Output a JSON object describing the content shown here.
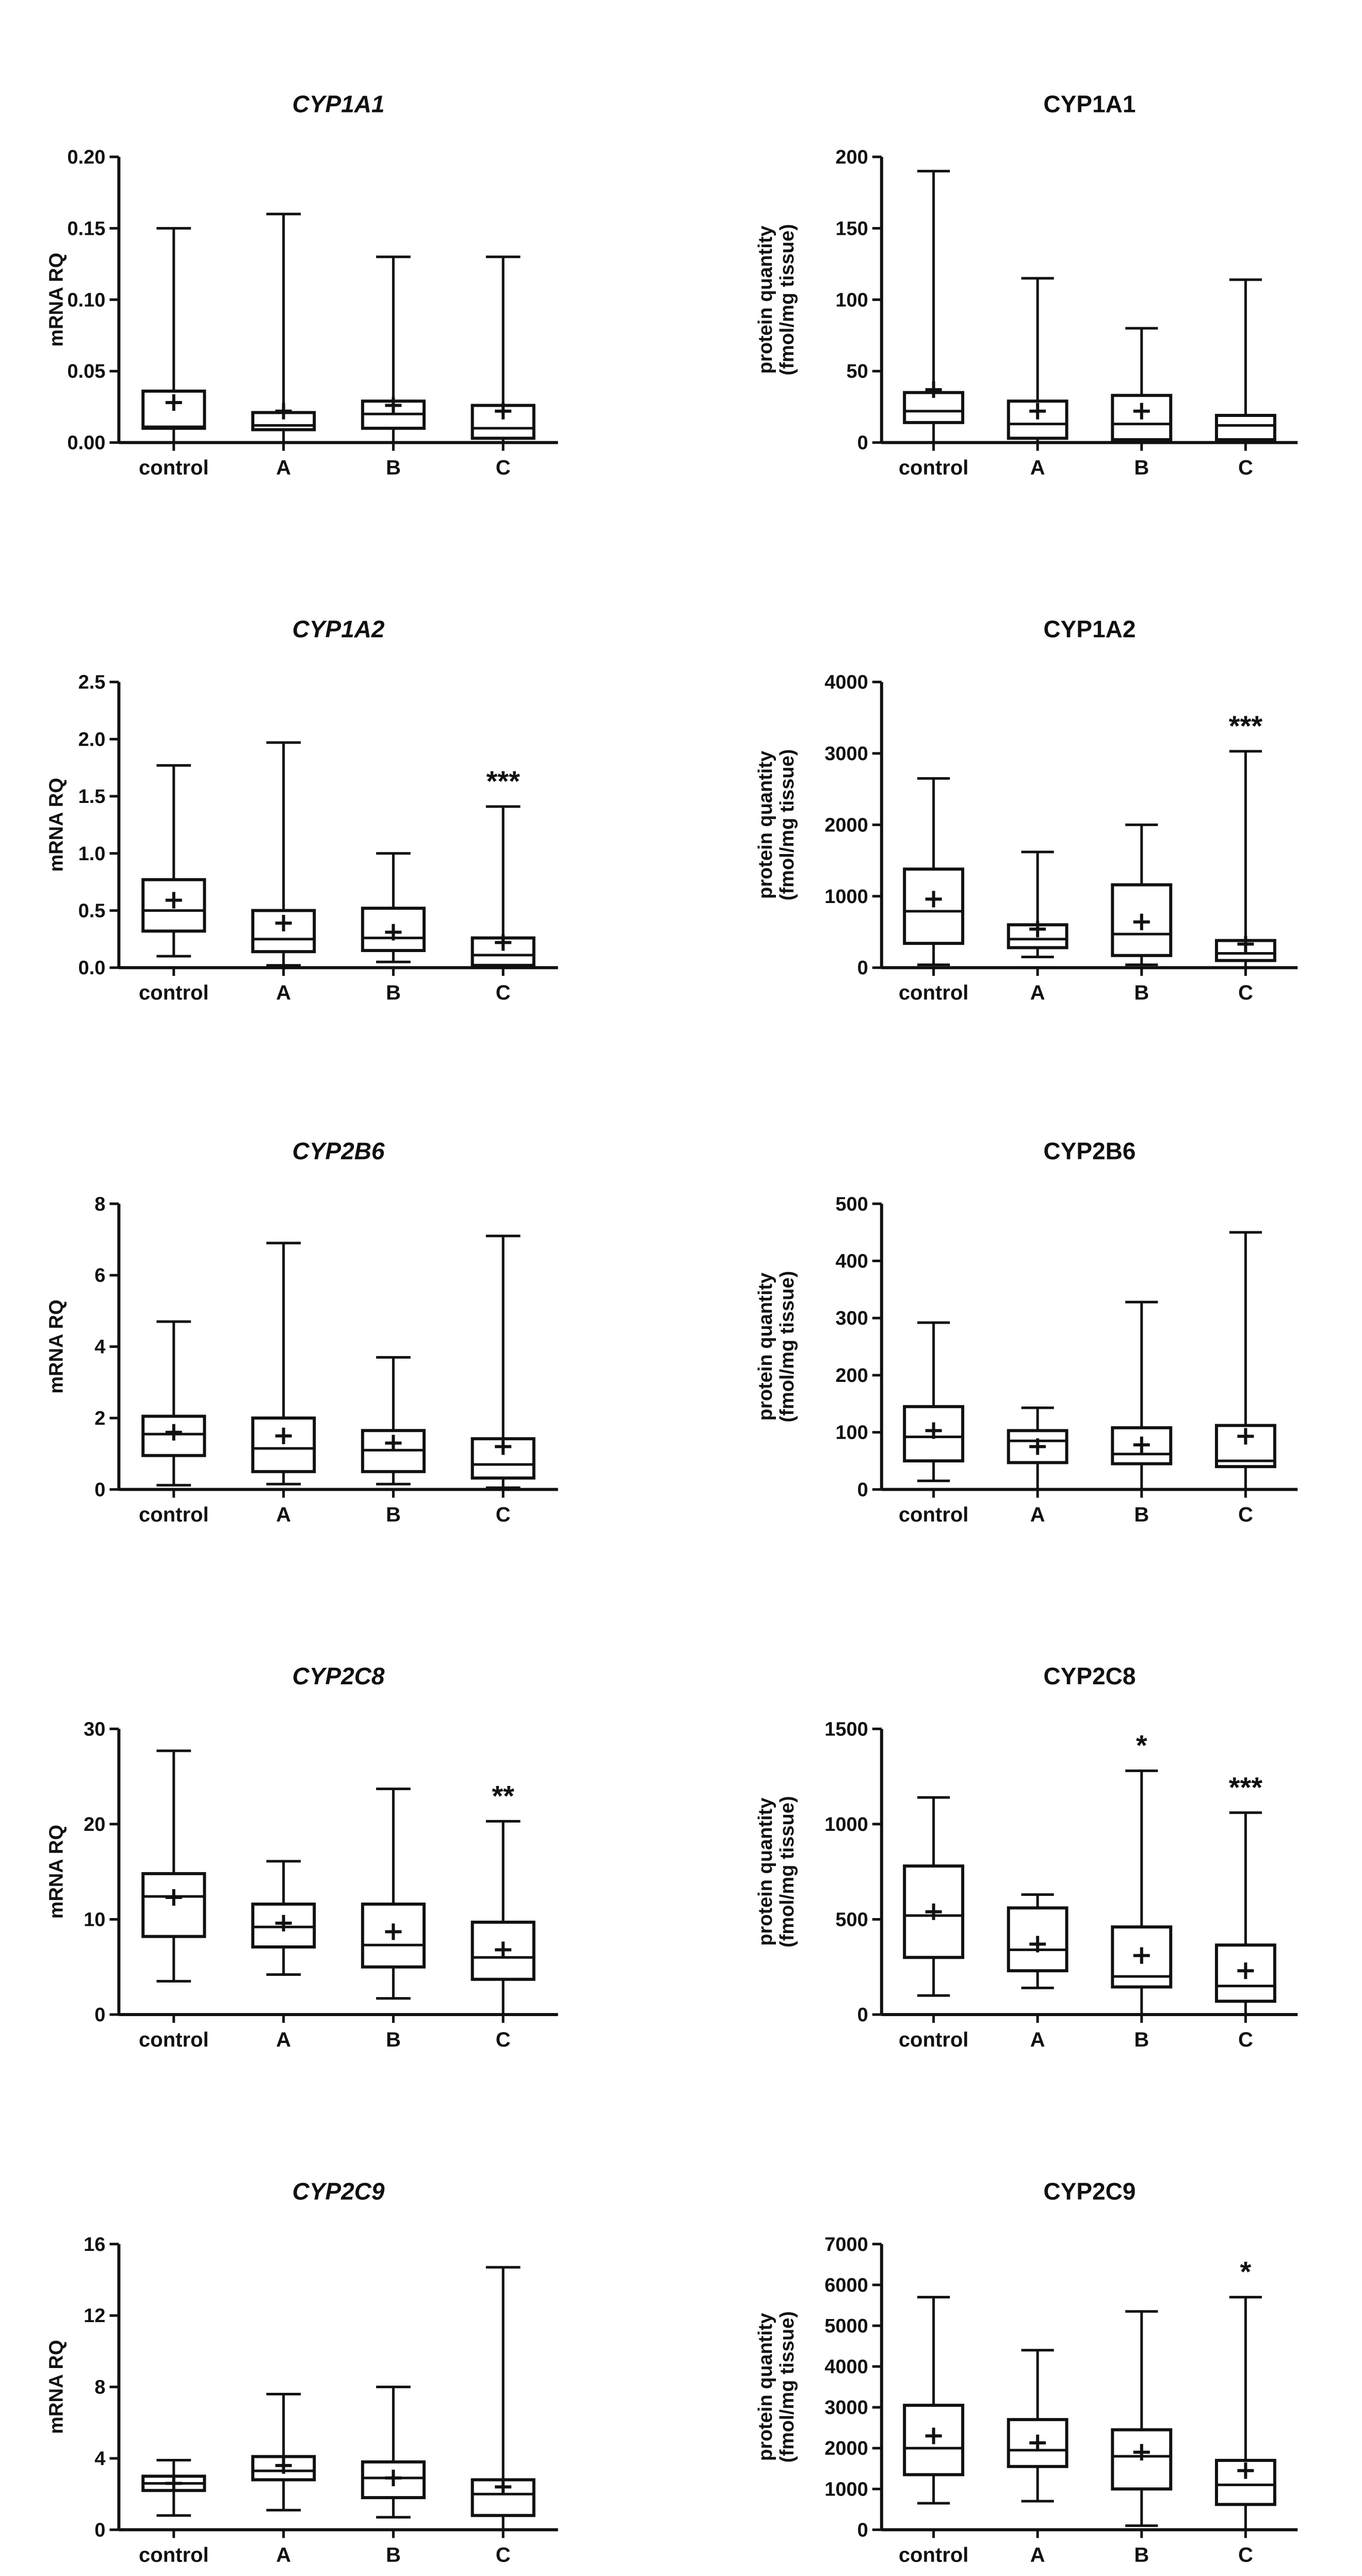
{
  "chart_data": [
    {
      "type": "boxplot",
      "title": "CYP1A1",
      "title_italic": true,
      "ylabel": [
        "mRNA RQ"
      ],
      "yticks": [
        0,
        0.05,
        0.1,
        0.15,
        0.2
      ],
      "ytick_labels": [
        "0.00",
        "0.05",
        "0.10",
        "0.15",
        "0.20"
      ],
      "ylim": [
        0,
        0.2
      ],
      "categories": [
        "control",
        "A",
        "B",
        "C"
      ],
      "boxes": [
        {
          "min": 0,
          "q1": 0.01,
          "median": 0.011,
          "q3": 0.036,
          "max": 0.15,
          "mean": 0.028
        },
        {
          "min": 0,
          "q1": 0.009,
          "median": 0.012,
          "q3": 0.021,
          "max": 0.16,
          "mean": 0.022
        },
        {
          "min": 0,
          "q1": 0.01,
          "median": 0.02,
          "q3": 0.029,
          "max": 0.13,
          "mean": 0.026
        },
        {
          "min": 0,
          "q1": 0.003,
          "median": 0.01,
          "q3": 0.026,
          "max": 0.13,
          "mean": 0.022
        }
      ],
      "significance": [
        "",
        "",
        "",
        ""
      ]
    },
    {
      "type": "boxplot",
      "title": "CYP1A1",
      "title_italic": false,
      "ylabel": [
        "protein quantity",
        "(fmol/mg tissue)"
      ],
      "yticks": [
        0,
        50,
        100,
        150,
        200
      ],
      "ytick_labels": [
        "0",
        "50",
        "100",
        "150",
        "200"
      ],
      "ylim": [
        0,
        200
      ],
      "categories": [
        "control",
        "A",
        "B",
        "C"
      ],
      "boxes": [
        {
          "min": 0,
          "q1": 14,
          "median": 22,
          "q3": 35,
          "max": 190,
          "mean": 37
        },
        {
          "min": 0,
          "q1": 3,
          "median": 13,
          "q3": 29,
          "max": 115,
          "mean": 22
        },
        {
          "min": 0,
          "q1": 2,
          "median": 13,
          "q3": 33,
          "max": 80,
          "mean": 22
        },
        {
          "min": 0,
          "q1": 2,
          "median": 12,
          "q3": 19,
          "max": 114,
          "mean": null
        }
      ],
      "significance": [
        "",
        "",
        "",
        ""
      ]
    },
    {
      "type": "boxplot",
      "title": "CYP1A2",
      "title_italic": true,
      "ylabel": [
        "mRNA RQ"
      ],
      "yticks": [
        0,
        0.5,
        1,
        1.5,
        2,
        2.5
      ],
      "ytick_labels": [
        "0.0",
        "0.5",
        "1.0",
        "1.5",
        "2.0",
        "2.5"
      ],
      "ylim": [
        0,
        2.5
      ],
      "categories": [
        "control",
        "A",
        "B",
        "C"
      ],
      "boxes": [
        {
          "min": 0.1,
          "q1": 0.32,
          "median": 0.5,
          "q3": 0.77,
          "max": 1.77,
          "mean": 0.59
        },
        {
          "min": 0.02,
          "q1": 0.14,
          "median": 0.25,
          "q3": 0.5,
          "max": 1.97,
          "mean": 0.39
        },
        {
          "min": 0.05,
          "q1": 0.15,
          "median": 0.26,
          "q3": 0.52,
          "max": 1.0,
          "mean": 0.31
        },
        {
          "min": 0,
          "q1": 0.02,
          "median": 0.11,
          "q3": 0.26,
          "max": 1.41,
          "mean": 0.22
        }
      ],
      "significance": [
        "",
        "",
        "",
        "***"
      ]
    },
    {
      "type": "boxplot",
      "title": "CYP1A2",
      "title_italic": false,
      "ylabel": [
        "protein quantity",
        "(fmol/mg tissue)"
      ],
      "yticks": [
        0,
        1000,
        2000,
        3000,
        4000
      ],
      "ytick_labels": [
        "0",
        "1000",
        "2000",
        "3000",
        "4000"
      ],
      "ylim": [
        0,
        4000
      ],
      "categories": [
        "control",
        "A",
        "B",
        "C"
      ],
      "boxes": [
        {
          "min": 40,
          "q1": 340,
          "median": 790,
          "q3": 1380,
          "max": 2650,
          "mean": 960
        },
        {
          "min": 150,
          "q1": 280,
          "median": 400,
          "q3": 600,
          "max": 1620,
          "mean": 540
        },
        {
          "min": 40,
          "q1": 170,
          "median": 470,
          "q3": 1160,
          "max": 2000,
          "mean": 640
        },
        {
          "min": 0,
          "q1": 100,
          "median": 200,
          "q3": 380,
          "max": 3030,
          "mean": 330
        }
      ],
      "significance": [
        "",
        "",
        "",
        "***"
      ]
    },
    {
      "type": "boxplot",
      "title": "CYP2B6",
      "title_italic": true,
      "ylabel": [
        "mRNA RQ"
      ],
      "yticks": [
        0,
        2,
        4,
        6,
        8
      ],
      "ytick_labels": [
        "0",
        "2",
        "4",
        "6",
        "8"
      ],
      "ylim": [
        0,
        8
      ],
      "categories": [
        "control",
        "A",
        "B",
        "C"
      ],
      "boxes": [
        {
          "min": 0.12,
          "q1": 0.95,
          "median": 1.55,
          "q3": 2.05,
          "max": 4.7,
          "mean": 1.6
        },
        {
          "min": 0.15,
          "q1": 0.5,
          "median": 1.15,
          "q3": 2.0,
          "max": 6.9,
          "mean": 1.5
        },
        {
          "min": 0.15,
          "q1": 0.5,
          "median": 1.1,
          "q3": 1.65,
          "max": 3.7,
          "mean": 1.3
        },
        {
          "min": 0.05,
          "q1": 0.32,
          "median": 0.7,
          "q3": 1.42,
          "max": 7.1,
          "mean": 1.2
        }
      ],
      "significance": [
        "",
        "",
        "",
        ""
      ]
    },
    {
      "type": "boxplot",
      "title": "CYP2B6",
      "title_italic": false,
      "ylabel": [
        "protein quantity",
        "(fmol/mg tissue)"
      ],
      "yticks": [
        0,
        100,
        200,
        300,
        400,
        500
      ],
      "ytick_labels": [
        "0",
        "100",
        "200",
        "300",
        "400",
        "500"
      ],
      "ylim": [
        0,
        500
      ],
      "categories": [
        "control",
        "A",
        "B",
        "C"
      ],
      "boxes": [
        {
          "min": 15,
          "q1": 50,
          "median": 92,
          "q3": 145,
          "max": 292,
          "mean": 103
        },
        {
          "min": 0,
          "q1": 47,
          "median": 85,
          "q3": 103,
          "max": 143,
          "mean": 75
        },
        {
          "min": 0,
          "q1": 45,
          "median": 62,
          "q3": 108,
          "max": 328,
          "mean": 78
        },
        {
          "min": 0,
          "q1": 40,
          "median": 50,
          "q3": 112,
          "max": 450,
          "mean": 93
        }
      ],
      "significance": [
        "",
        "",
        "",
        ""
      ]
    },
    {
      "type": "boxplot",
      "title": "CYP2C8",
      "title_italic": true,
      "ylabel": [
        "mRNA RQ"
      ],
      "yticks": [
        0,
        10,
        20,
        30
      ],
      "ytick_labels": [
        "0",
        "10",
        "20",
        "30"
      ],
      "ylim": [
        0,
        30
      ],
      "categories": [
        "control",
        "A",
        "B",
        "C"
      ],
      "boxes": [
        {
          "min": 3.5,
          "q1": 8.2,
          "median": 12.4,
          "q3": 14.8,
          "max": 27.7,
          "mean": 12.3
        },
        {
          "min": 4.2,
          "q1": 7.1,
          "median": 9.2,
          "q3": 11.6,
          "max": 16.1,
          "mean": 9.6
        },
        {
          "min": 1.7,
          "q1": 5.0,
          "median": 7.3,
          "q3": 11.6,
          "max": 23.7,
          "mean": 8.7
        },
        {
          "min": 0,
          "q1": 3.7,
          "median": 6.0,
          "q3": 9.7,
          "max": 20.3,
          "mean": 6.8
        }
      ],
      "significance": [
        "",
        "",
        "",
        "**"
      ]
    },
    {
      "type": "boxplot",
      "title": "CYP2C8",
      "title_italic": false,
      "ylabel": [
        "protein quantity",
        "(fmol/mg tissue)"
      ],
      "yticks": [
        0,
        500,
        1000,
        1500
      ],
      "ytick_labels": [
        "0",
        "500",
        "1000",
        "1500"
      ],
      "ylim": [
        0,
        1500
      ],
      "categories": [
        "control",
        "A",
        "B",
        "C"
      ],
      "boxes": [
        {
          "min": 100,
          "q1": 300,
          "median": 520,
          "q3": 780,
          "max": 1140,
          "mean": 540
        },
        {
          "min": 140,
          "q1": 230,
          "median": 340,
          "q3": 560,
          "max": 630,
          "mean": 370
        },
        {
          "min": 0,
          "q1": 145,
          "median": 200,
          "q3": 460,
          "max": 1280,
          "mean": 310
        },
        {
          "min": 0,
          "q1": 70,
          "median": 150,
          "q3": 365,
          "max": 1060,
          "mean": 230
        }
      ],
      "significance": [
        "",
        "",
        "*",
        "***"
      ]
    },
    {
      "type": "boxplot",
      "title": "CYP2C9",
      "title_italic": true,
      "ylabel": [
        "mRNA RQ"
      ],
      "yticks": [
        0,
        4,
        8,
        12,
        16
      ],
      "ytick_labels": [
        "0",
        "4",
        "8",
        "12",
        "16"
      ],
      "ylim": [
        0,
        16
      ],
      "categories": [
        "control",
        "A",
        "B",
        "C"
      ],
      "boxes": [
        {
          "min": 0.8,
          "q1": 2.2,
          "median": 2.6,
          "q3": 3.0,
          "max": 3.9,
          "mean": 2.6
        },
        {
          "min": 1.1,
          "q1": 2.8,
          "median": 3.3,
          "q3": 4.1,
          "max": 7.6,
          "mean": 3.6
        },
        {
          "min": 0.7,
          "q1": 1.8,
          "median": 2.9,
          "q3": 3.8,
          "max": 8.0,
          "mean": 2.9
        },
        {
          "min": 0,
          "q1": 0.8,
          "median": 2.0,
          "q3": 2.8,
          "max": 14.7,
          "mean": 2.4
        }
      ],
      "significance": [
        "",
        "",
        "",
        ""
      ]
    },
    {
      "type": "boxplot",
      "title": "CYP2C9",
      "title_italic": false,
      "ylabel": [
        "protein quantity",
        "(fmol/mg tissue)"
      ],
      "yticks": [
        0,
        1000,
        2000,
        3000,
        4000,
        5000,
        6000,
        7000
      ],
      "ytick_labels": [
        "0",
        "1000",
        "2000",
        "3000",
        "4000",
        "5000",
        "6000",
        "7000"
      ],
      "ylim": [
        0,
        7000
      ],
      "categories": [
        "control",
        "A",
        "B",
        "C"
      ],
      "boxes": [
        {
          "min": 650,
          "q1": 1350,
          "median": 2000,
          "q3": 3050,
          "max": 5700,
          "mean": 2300
        },
        {
          "min": 700,
          "q1": 1550,
          "median": 1950,
          "q3": 2700,
          "max": 4400,
          "mean": 2130
        },
        {
          "min": 100,
          "q1": 1000,
          "median": 1800,
          "q3": 2450,
          "max": 5350,
          "mean": 1900
        },
        {
          "min": 0,
          "q1": 620,
          "median": 1100,
          "q3": 1700,
          "max": 5700,
          "mean": 1450
        }
      ],
      "significance": [
        "",
        "",
        "",
        "*"
      ]
    }
  ]
}
